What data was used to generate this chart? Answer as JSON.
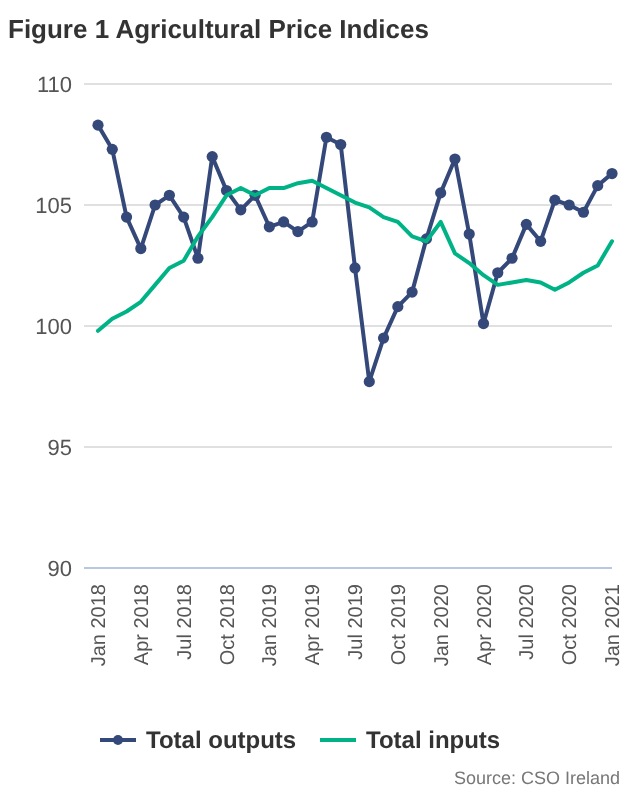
{
  "chart_data": {
    "type": "line",
    "title": "Figure 1 Agricultural Price Indices",
    "categories": [
      "Jan 2018",
      null,
      null,
      "Apr 2018",
      null,
      null,
      "Jul 2018",
      null,
      null,
      "Oct 2018",
      null,
      null,
      "Jan 2019",
      null,
      null,
      "Apr 2019",
      null,
      null,
      "Jul 2019",
      null,
      null,
      "Oct 2019",
      null,
      null,
      "Jan 2020",
      null,
      null,
      "Apr 2020",
      null,
      null,
      "Jul 2020",
      null,
      null,
      "Oct 2020",
      null,
      null,
      "Jan 2021"
    ],
    "series": [
      {
        "name": "Total outputs",
        "color": "#34497a",
        "marker": "circle",
        "values": [
          108.3,
          107.3,
          104.5,
          103.2,
          105.0,
          105.4,
          104.5,
          102.8,
          107.0,
          105.6,
          104.8,
          105.4,
          104.1,
          104.3,
          103.9,
          104.3,
          107.8,
          107.5,
          102.4,
          97.7,
          99.5,
          100.8,
          101.4,
          103.6,
          105.5,
          106.9,
          103.8,
          100.1,
          102.2,
          102.8,
          104.2,
          103.5,
          105.2,
          105.0,
          104.7,
          105.8,
          106.3
        ]
      },
      {
        "name": "Total inputs",
        "color": "#00b386",
        "marker": "none",
        "values": [
          99.8,
          100.3,
          100.6,
          101.0,
          101.7,
          102.4,
          102.7,
          103.7,
          104.5,
          105.4,
          105.7,
          105.4,
          105.7,
          105.7,
          105.9,
          106.0,
          105.7,
          105.4,
          105.1,
          104.9,
          104.5,
          104.3,
          103.7,
          103.5,
          104.3,
          103.0,
          102.6,
          102.1,
          101.7,
          101.8,
          101.9,
          101.8,
          101.5,
          101.8,
          102.2,
          102.5,
          103.5
        ]
      }
    ],
    "ylim": [
      90,
      110
    ],
    "yticks": [
      90,
      95,
      100,
      105,
      110
    ],
    "grid": "y",
    "legend": "bottom",
    "annotations": [
      "Source: CSO Ireland"
    ]
  }
}
